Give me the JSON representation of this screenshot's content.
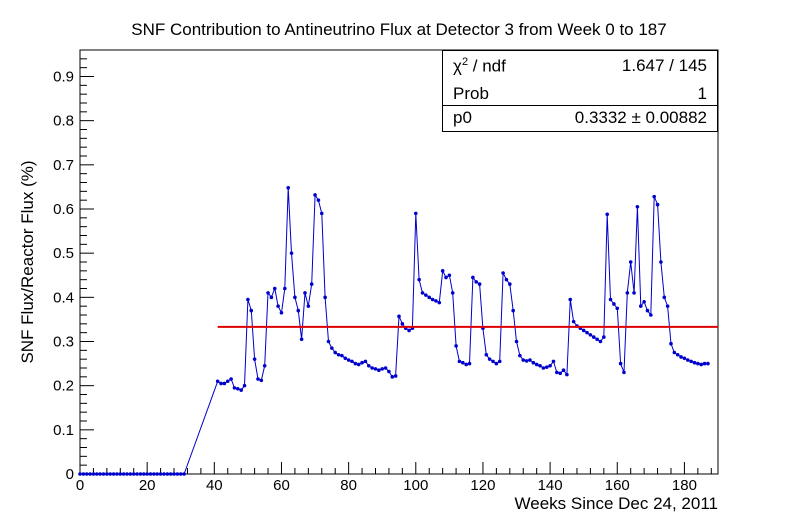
{
  "title": "SNF Contribution to Antineutrino Flux at Detector 3 from Week 0 to 187",
  "stats": {
    "chi2_label": "χ² / ndf",
    "chi2_value": "1.647 / 145",
    "prob_label": "Prob",
    "prob_value": "1",
    "p0_label": "p0",
    "p0_value": "0.3332 ± 0.00882"
  },
  "colors": {
    "data": "#0000cc",
    "fit": "#dd0000",
    "axis": "#000000"
  },
  "chart_data": {
    "type": "line",
    "title": "SNF Contribution to Antineutrino Flux at Detector 3 from Week 0 to 187",
    "xlabel": "Weeks Since Dec 24, 2011",
    "ylabel": "SNF Flux/Reactor Flux (%)",
    "xlim": [
      0,
      190
    ],
    "ylim": [
      0,
      0.96
    ],
    "x_ticks": [
      0,
      20,
      40,
      60,
      80,
      100,
      120,
      140,
      160,
      180
    ],
    "y_ticks": [
      0,
      0.1,
      0.2,
      0.3,
      0.4,
      0.5,
      0.6,
      0.7,
      0.8,
      0.9
    ],
    "x_tick_labels": [
      "0",
      "20",
      "40",
      "60",
      "80",
      "100",
      "120",
      "140",
      "160",
      "180"
    ],
    "y_tick_labels": [
      "0",
      "0.1",
      "0.2",
      "0.3",
      "0.4",
      "0.5",
      "0.6",
      "0.7",
      "0.8",
      "0.9"
    ],
    "series": [
      {
        "style": "line+markers",
        "x": [
          0,
          1,
          2,
          3,
          4,
          5,
          6,
          7,
          8,
          9,
          10,
          11,
          12,
          13,
          14,
          15,
          16,
          17,
          18,
          19,
          20,
          21,
          22,
          23,
          24,
          25,
          26,
          27,
          28,
          29,
          30,
          31,
          41,
          42,
          43,
          44,
          45,
          46,
          47,
          48,
          49,
          50,
          51,
          52,
          53,
          54,
          55,
          56,
          57,
          58,
          59,
          60,
          61,
          62,
          63,
          64,
          65,
          66,
          67,
          68,
          69,
          70,
          71,
          72,
          73,
          74,
          75,
          76,
          77,
          78,
          79,
          80,
          81,
          82,
          83,
          84,
          85,
          86,
          87,
          88,
          89,
          90,
          91,
          92,
          93,
          94,
          95,
          96,
          97,
          98,
          99,
          100,
          101,
          102,
          103,
          104,
          105,
          106,
          107,
          108,
          109,
          110,
          111,
          112,
          113,
          114,
          115,
          116,
          117,
          118,
          119,
          120,
          121,
          122,
          123,
          124,
          125,
          126,
          127,
          128,
          129,
          130,
          131,
          132,
          133,
          134,
          135,
          136,
          137,
          138,
          139,
          140,
          141,
          142,
          143,
          144,
          145,
          146,
          147,
          148,
          149,
          150,
          151,
          152,
          153,
          154,
          155,
          156,
          157,
          158,
          159,
          160,
          161,
          162,
          163,
          164,
          165,
          166,
          167,
          168,
          169,
          170,
          171,
          172,
          173,
          174,
          175,
          176,
          177,
          178,
          179,
          180,
          181,
          182,
          183,
          184,
          185,
          186,
          187
        ],
        "y": [
          0,
          0,
          0,
          0,
          0,
          0,
          0,
          0,
          0,
          0,
          0,
          0,
          0,
          0,
          0,
          0,
          0,
          0,
          0,
          0,
          0,
          0,
          0,
          0,
          0,
          0,
          0,
          0,
          0,
          0,
          0,
          0,
          0.21,
          0.205,
          0.205,
          0.21,
          0.215,
          0.195,
          0.193,
          0.19,
          0.2,
          0.395,
          0.37,
          0.26,
          0.215,
          0.212,
          0.245,
          0.41,
          0.4,
          0.42,
          0.38,
          0.365,
          0.42,
          0.648,
          0.5,
          0.4,
          0.37,
          0.305,
          0.41,
          0.38,
          0.43,
          0.632,
          0.62,
          0.59,
          0.4,
          0.3,
          0.285,
          0.275,
          0.27,
          0.268,
          0.262,
          0.258,
          0.255,
          0.25,
          0.248,
          0.252,
          0.255,
          0.245,
          0.24,
          0.238,
          0.235,
          0.238,
          0.24,
          0.232,
          0.22,
          0.222,
          0.357,
          0.34,
          0.33,
          0.325,
          0.33,
          0.59,
          0.44,
          0.41,
          0.405,
          0.4,
          0.395,
          0.392,
          0.388,
          0.46,
          0.445,
          0.45,
          0.41,
          0.29,
          0.255,
          0.252,
          0.248,
          0.25,
          0.445,
          0.435,
          0.43,
          0.33,
          0.27,
          0.26,
          0.255,
          0.25,
          0.255,
          0.455,
          0.44,
          0.43,
          0.37,
          0.3,
          0.268,
          0.258,
          0.256,
          0.258,
          0.252,
          0.248,
          0.245,
          0.24,
          0.242,
          0.245,
          0.255,
          0.23,
          0.228,
          0.235,
          0.225,
          0.395,
          0.345,
          0.335,
          0.33,
          0.325,
          0.32,
          0.315,
          0.31,
          0.305,
          0.3,
          0.31,
          0.588,
          0.395,
          0.385,
          0.375,
          0.25,
          0.23,
          0.41,
          0.48,
          0.41,
          0.605,
          0.38,
          0.39,
          0.37,
          0.36,
          0.628,
          0.61,
          0.48,
          0.4,
          0.38,
          0.295,
          0.275,
          0.27,
          0.265,
          0.262,
          0.258,
          0.255,
          0.252,
          0.25,
          0.248,
          0.25,
          0.25
        ]
      },
      {
        "style": "fit-line",
        "x": [
          41,
          190
        ],
        "y": [
          0.3332,
          0.3332
        ]
      }
    ]
  }
}
